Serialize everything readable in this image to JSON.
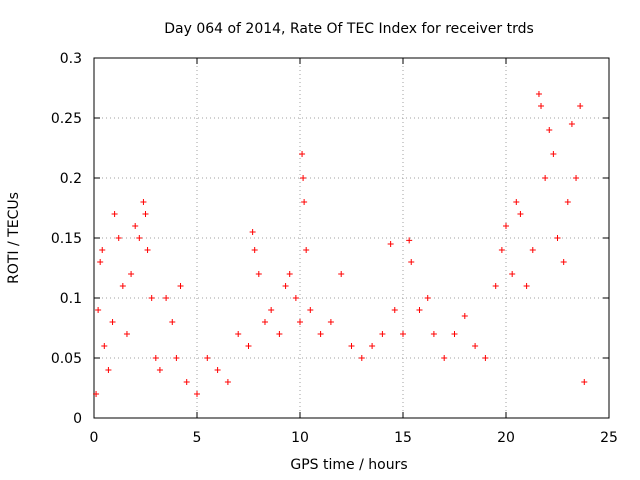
{
  "chart_data": {
    "type": "scatter",
    "title": "Day 064 of 2014, Rate Of TEC Index for receiver trds",
    "xlabel": "GPS time / hours",
    "ylabel": "ROTI / TECUs",
    "xlim": [
      0,
      25
    ],
    "ylim": [
      0,
      0.3
    ],
    "x_ticks": [
      0,
      5,
      10,
      15,
      20,
      25
    ],
    "x_tick_labels": [
      "0",
      "5",
      "10",
      "15",
      "20",
      "25"
    ],
    "y_ticks": [
      0,
      0.05,
      0.1,
      0.15,
      0.2,
      0.25,
      0.3
    ],
    "y_tick_labels": [
      "0",
      "0.05",
      "0.1",
      "0.15",
      "0.2",
      "0.25",
      "0.3"
    ],
    "grid": true,
    "marker": "+",
    "color": "#ff0000",
    "series": [
      {
        "name": "ROTI",
        "points": [
          [
            0.1,
            0.02
          ],
          [
            0.2,
            0.09
          ],
          [
            0.3,
            0.13
          ],
          [
            0.4,
            0.14
          ],
          [
            0.5,
            0.06
          ],
          [
            0.7,
            0.04
          ],
          [
            0.9,
            0.08
          ],
          [
            1.0,
            0.17
          ],
          [
            1.2,
            0.15
          ],
          [
            1.4,
            0.11
          ],
          [
            1.6,
            0.07
          ],
          [
            1.8,
            0.12
          ],
          [
            2.0,
            0.16
          ],
          [
            2.2,
            0.15
          ],
          [
            2.4,
            0.18
          ],
          [
            2.5,
            0.17
          ],
          [
            2.6,
            0.14
          ],
          [
            2.8,
            0.1
          ],
          [
            3.0,
            0.05
          ],
          [
            3.2,
            0.04
          ],
          [
            3.5,
            0.1
          ],
          [
            3.8,
            0.08
          ],
          [
            4.0,
            0.05
          ],
          [
            4.2,
            0.11
          ],
          [
            4.5,
            0.03
          ],
          [
            5.0,
            0.02
          ],
          [
            5.5,
            0.05
          ],
          [
            6.0,
            0.04
          ],
          [
            6.5,
            0.03
          ],
          [
            7.0,
            0.07
          ],
          [
            7.5,
            0.06
          ],
          [
            7.7,
            0.155
          ],
          [
            7.8,
            0.14
          ],
          [
            8.0,
            0.12
          ],
          [
            8.3,
            0.08
          ],
          [
            8.6,
            0.09
          ],
          [
            9.0,
            0.07
          ],
          [
            9.3,
            0.11
          ],
          [
            9.5,
            0.12
          ],
          [
            9.8,
            0.1
          ],
          [
            10.0,
            0.08
          ],
          [
            10.1,
            0.22
          ],
          [
            10.15,
            0.2
          ],
          [
            10.2,
            0.18
          ],
          [
            10.3,
            0.14
          ],
          [
            10.5,
            0.09
          ],
          [
            11.0,
            0.07
          ],
          [
            11.5,
            0.08
          ],
          [
            12.0,
            0.12
          ],
          [
            12.5,
            0.06
          ],
          [
            13.0,
            0.05
          ],
          [
            13.5,
            0.06
          ],
          [
            14.0,
            0.07
          ],
          [
            14.4,
            0.145
          ],
          [
            14.6,
            0.09
          ],
          [
            15.0,
            0.07
          ],
          [
            15.3,
            0.148
          ],
          [
            15.4,
            0.13
          ],
          [
            15.8,
            0.09
          ],
          [
            16.2,
            0.1
          ],
          [
            16.5,
            0.07
          ],
          [
            17.0,
            0.05
          ],
          [
            17.5,
            0.07
          ],
          [
            18.0,
            0.085
          ],
          [
            18.5,
            0.06
          ],
          [
            19.0,
            0.05
          ],
          [
            19.5,
            0.11
          ],
          [
            19.8,
            0.14
          ],
          [
            20.0,
            0.16
          ],
          [
            20.3,
            0.12
          ],
          [
            20.5,
            0.18
          ],
          [
            20.7,
            0.17
          ],
          [
            21.0,
            0.11
          ],
          [
            21.3,
            0.14
          ],
          [
            21.6,
            0.27
          ],
          [
            21.7,
            0.26
          ],
          [
            21.9,
            0.2
          ],
          [
            22.1,
            0.24
          ],
          [
            22.3,
            0.22
          ],
          [
            22.5,
            0.15
          ],
          [
            22.8,
            0.13
          ],
          [
            23.0,
            0.18
          ],
          [
            23.2,
            0.245
          ],
          [
            23.4,
            0.2
          ],
          [
            23.6,
            0.26
          ],
          [
            23.8,
            0.03
          ]
        ]
      }
    ]
  }
}
